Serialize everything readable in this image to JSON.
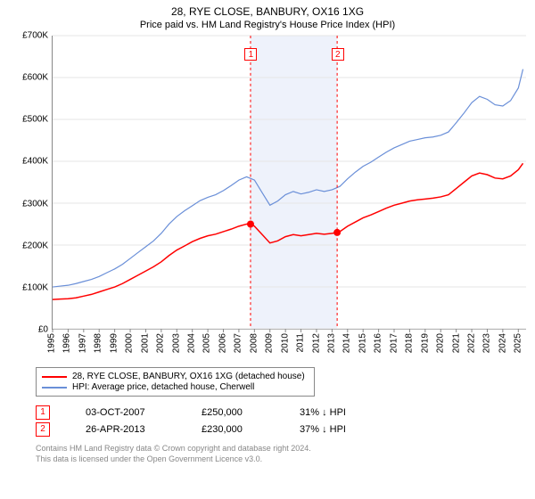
{
  "title": "28, RYE CLOSE, BANBURY, OX16 1XG",
  "subtitle": "Price paid vs. HM Land Registry's House Price Index (HPI)",
  "chart": {
    "type": "line",
    "background_color": "#ffffff",
    "grid_color": "#e5e5e5",
    "axis_color": "#888888",
    "tick_fontsize": 10,
    "title_fontsize": 12,
    "xlim": [
      1995,
      2025.5
    ],
    "ylim": [
      0,
      700000
    ],
    "ytick_step": 100000,
    "y_ticks": [
      "£0",
      "£100K",
      "£200K",
      "£300K",
      "£400K",
      "£500K",
      "£600K",
      "£700K"
    ],
    "x_ticks": [
      1995,
      1996,
      1997,
      1998,
      1999,
      2000,
      2001,
      2002,
      2003,
      2004,
      2005,
      2006,
      2007,
      2008,
      2009,
      2010,
      2011,
      2012,
      2013,
      2014,
      2015,
      2016,
      2017,
      2018,
      2019,
      2020,
      2021,
      2022,
      2023,
      2024,
      2025
    ],
    "shaded_band": {
      "from": 2007.75,
      "to": 2013.33,
      "color": "#eef2fb"
    },
    "series": [
      {
        "name": "property_price",
        "label": "28, RYE CLOSE, BANBURY, OX16 1XG (detached house)",
        "color": "#ff0000",
        "line_width": 1.5,
        "points": [
          [
            1995.0,
            70000
          ],
          [
            1995.5,
            71000
          ],
          [
            1996.0,
            72000
          ],
          [
            1996.5,
            74000
          ],
          [
            1997.0,
            78000
          ],
          [
            1997.5,
            82000
          ],
          [
            1998.0,
            88000
          ],
          [
            1998.5,
            94000
          ],
          [
            1999.0,
            100000
          ],
          [
            1999.5,
            108000
          ],
          [
            2000.0,
            118000
          ],
          [
            2000.5,
            128000
          ],
          [
            2001.0,
            138000
          ],
          [
            2001.5,
            148000
          ],
          [
            2002.0,
            160000
          ],
          [
            2002.5,
            175000
          ],
          [
            2003.0,
            188000
          ],
          [
            2003.5,
            198000
          ],
          [
            2004.0,
            208000
          ],
          [
            2004.5,
            216000
          ],
          [
            2005.0,
            222000
          ],
          [
            2005.5,
            226000
          ],
          [
            2006.0,
            232000
          ],
          [
            2006.5,
            238000
          ],
          [
            2007.0,
            245000
          ],
          [
            2007.5,
            250000
          ],
          [
            2007.75,
            250000
          ],
          [
            2008.0,
            245000
          ],
          [
            2008.5,
            225000
          ],
          [
            2009.0,
            205000
          ],
          [
            2009.5,
            210000
          ],
          [
            2010.0,
            220000
          ],
          [
            2010.5,
            225000
          ],
          [
            2011.0,
            222000
          ],
          [
            2011.5,
            225000
          ],
          [
            2012.0,
            228000
          ],
          [
            2012.5,
            226000
          ],
          [
            2013.0,
            228000
          ],
          [
            2013.33,
            230000
          ],
          [
            2013.5,
            232000
          ],
          [
            2014.0,
            245000
          ],
          [
            2014.5,
            255000
          ],
          [
            2015.0,
            265000
          ],
          [
            2015.5,
            272000
          ],
          [
            2016.0,
            280000
          ],
          [
            2016.5,
            288000
          ],
          [
            2017.0,
            295000
          ],
          [
            2017.5,
            300000
          ],
          [
            2018.0,
            305000
          ],
          [
            2018.5,
            308000
          ],
          [
            2019.0,
            310000
          ],
          [
            2019.5,
            312000
          ],
          [
            2020.0,
            315000
          ],
          [
            2020.5,
            320000
          ],
          [
            2021.0,
            335000
          ],
          [
            2021.5,
            350000
          ],
          [
            2022.0,
            365000
          ],
          [
            2022.5,
            372000
          ],
          [
            2023.0,
            368000
          ],
          [
            2023.5,
            360000
          ],
          [
            2024.0,
            358000
          ],
          [
            2024.5,
            365000
          ],
          [
            2025.0,
            380000
          ],
          [
            2025.3,
            395000
          ]
        ]
      },
      {
        "name": "hpi_cherwell",
        "label": "HPI: Average price, detached house, Cherwell",
        "color": "#6a8fd8",
        "line_width": 1.2,
        "points": [
          [
            1995.0,
            100000
          ],
          [
            1995.5,
            102000
          ],
          [
            1996.0,
            104000
          ],
          [
            1996.5,
            108000
          ],
          [
            1997.0,
            113000
          ],
          [
            1997.5,
            118000
          ],
          [
            1998.0,
            125000
          ],
          [
            1998.5,
            134000
          ],
          [
            1999.0,
            143000
          ],
          [
            1999.5,
            154000
          ],
          [
            2000.0,
            168000
          ],
          [
            2000.5,
            182000
          ],
          [
            2001.0,
            196000
          ],
          [
            2001.5,
            210000
          ],
          [
            2002.0,
            228000
          ],
          [
            2002.5,
            250000
          ],
          [
            2003.0,
            268000
          ],
          [
            2003.5,
            282000
          ],
          [
            2004.0,
            294000
          ],
          [
            2004.5,
            306000
          ],
          [
            2005.0,
            314000
          ],
          [
            2005.5,
            320000
          ],
          [
            2006.0,
            330000
          ],
          [
            2006.5,
            342000
          ],
          [
            2007.0,
            355000
          ],
          [
            2007.5,
            363000
          ],
          [
            2008.0,
            355000
          ],
          [
            2008.5,
            325000
          ],
          [
            2009.0,
            295000
          ],
          [
            2009.5,
            305000
          ],
          [
            2010.0,
            320000
          ],
          [
            2010.5,
            328000
          ],
          [
            2011.0,
            322000
          ],
          [
            2011.5,
            326000
          ],
          [
            2012.0,
            332000
          ],
          [
            2012.5,
            328000
          ],
          [
            2013.0,
            332000
          ],
          [
            2013.5,
            340000
          ],
          [
            2014.0,
            358000
          ],
          [
            2014.5,
            374000
          ],
          [
            2015.0,
            388000
          ],
          [
            2015.5,
            398000
          ],
          [
            2016.0,
            410000
          ],
          [
            2016.5,
            422000
          ],
          [
            2017.0,
            432000
          ],
          [
            2017.5,
            440000
          ],
          [
            2018.0,
            448000
          ],
          [
            2018.5,
            452000
          ],
          [
            2019.0,
            456000
          ],
          [
            2019.5,
            458000
          ],
          [
            2020.0,
            462000
          ],
          [
            2020.5,
            470000
          ],
          [
            2021.0,
            492000
          ],
          [
            2021.5,
            515000
          ],
          [
            2022.0,
            540000
          ],
          [
            2022.5,
            555000
          ],
          [
            2023.0,
            548000
          ],
          [
            2023.5,
            535000
          ],
          [
            2024.0,
            532000
          ],
          [
            2024.5,
            545000
          ],
          [
            2025.0,
            575000
          ],
          [
            2025.3,
            620000
          ]
        ]
      }
    ],
    "sale_markers": [
      {
        "n": "1",
        "x": 2007.75,
        "y": 250000,
        "badge_top_offset": 14
      },
      {
        "n": "2",
        "x": 2013.33,
        "y": 230000,
        "badge_top_offset": 14
      }
    ],
    "marker_style": {
      "dot_fill": "#ff0000",
      "dot_radius": 4,
      "dashed_line_color": "#ff0000",
      "dashed_pattern": "3,3",
      "badge_border": "#ff0000",
      "badge_bg": "#ffffff",
      "badge_text": "#ff0000"
    }
  },
  "legend": {
    "items": [
      {
        "color": "#ff0000",
        "label": "28, RYE CLOSE, BANBURY, OX16 1XG (detached house)"
      },
      {
        "color": "#6a8fd8",
        "label": "HPI: Average price, detached house, Cherwell"
      }
    ]
  },
  "sales": [
    {
      "n": "1",
      "date": "03-OCT-2007",
      "price": "£250,000",
      "delta": "31% ↓ HPI"
    },
    {
      "n": "2",
      "date": "26-APR-2013",
      "price": "£230,000",
      "delta": "37% ↓ HPI"
    }
  ],
  "footer": {
    "line1": "Contains HM Land Registry data © Crown copyright and database right 2024.",
    "line2": "This data is licensed under the Open Government Licence v3.0."
  }
}
